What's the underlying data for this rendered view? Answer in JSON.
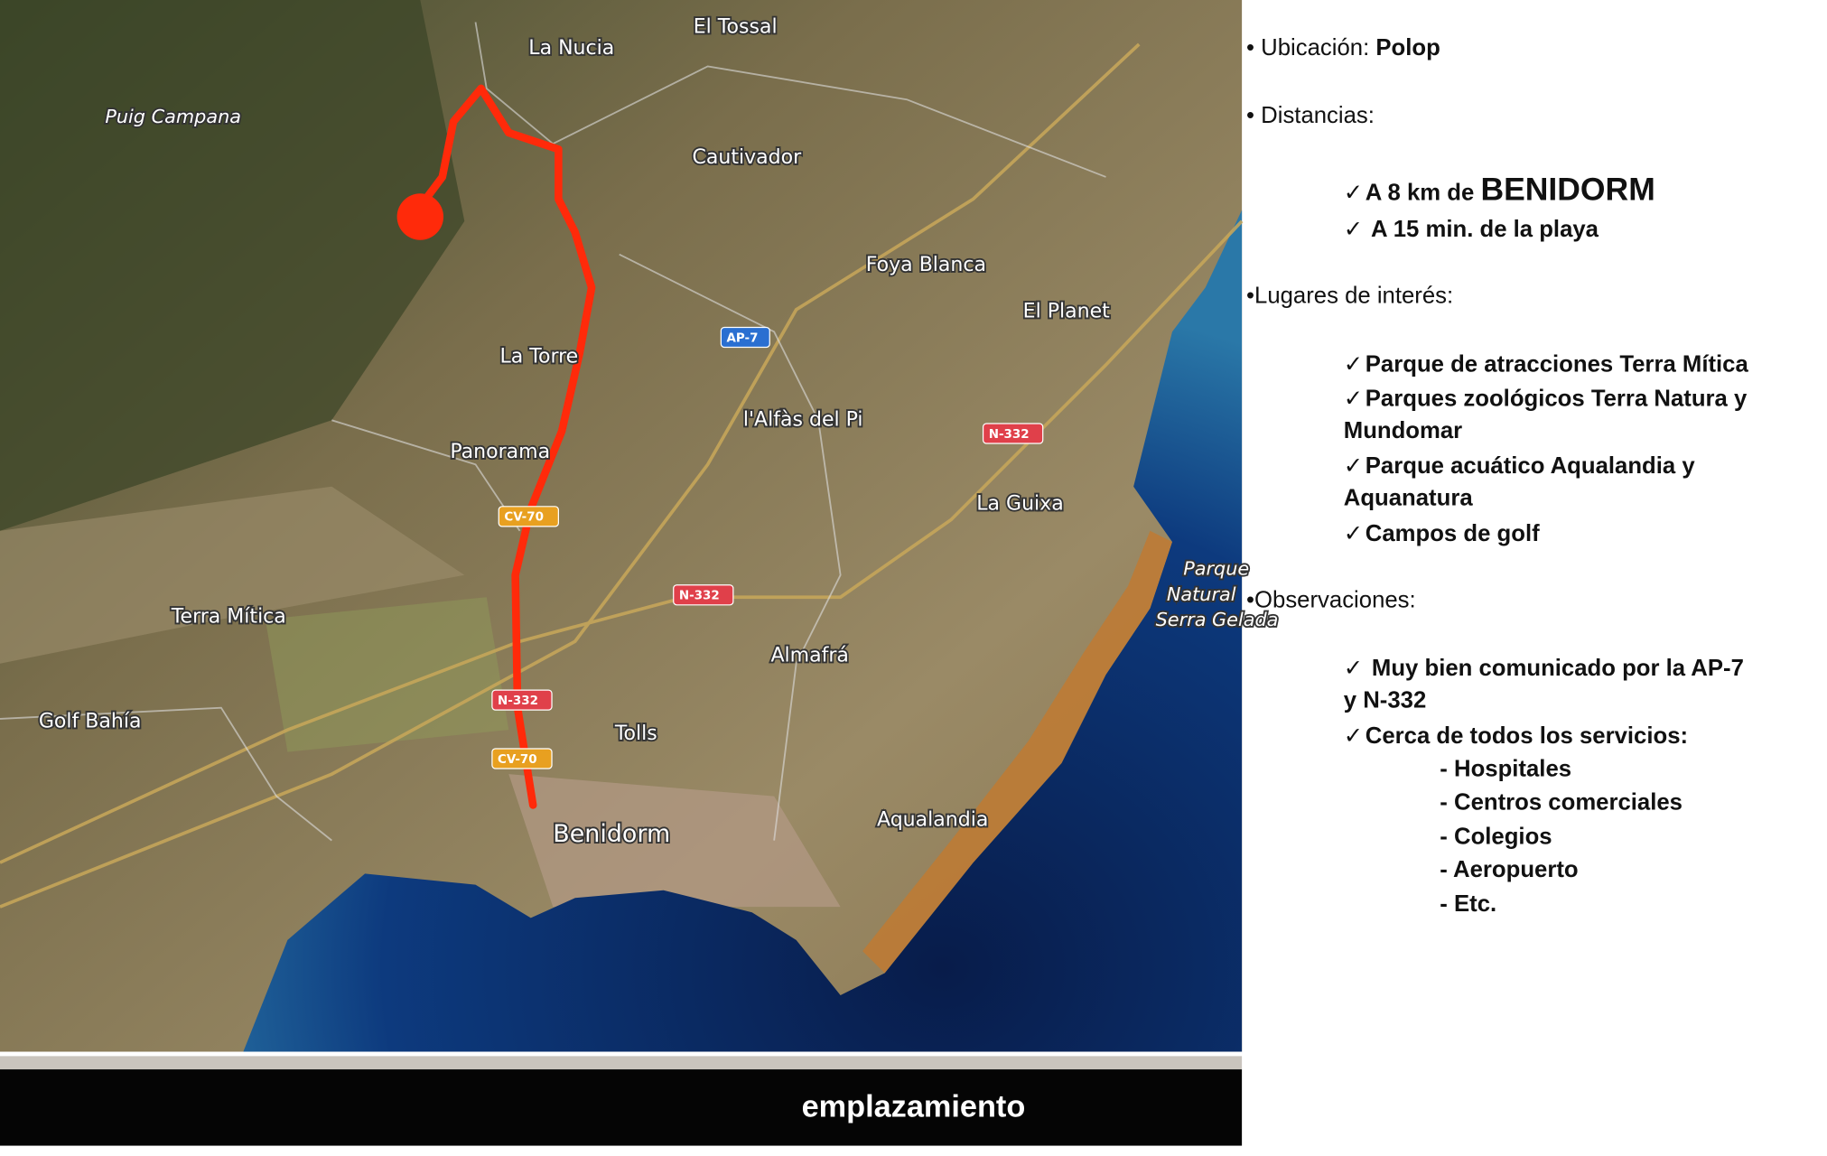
{
  "map": {
    "labels": {
      "el_tossal": "El Tossal",
      "la_nucia": "La Nucia",
      "puig_campana": "Puig Campana",
      "cautivador": "Cautivador",
      "foya_blanca": "Foya Blanca",
      "el_planet": "El Planet",
      "la_torre": "La Torre",
      "alfas": "l'Alfàs del Pi",
      "panorama": "Panorama",
      "la_guixa": "La Guixa",
      "parque1": "Parque",
      "parque2": "Natural",
      "parque3": "Serra Gelada",
      "terra_mitica": "Terra Mítica",
      "almafra": "Almafrá",
      "golf_bahia": "Golf Bahía",
      "tolls": "Tolls",
      "benidorm": "Benidorm",
      "aqualandia": "Aqualandia"
    },
    "shields": {
      "ap7": "AP-7",
      "n332": "N-332",
      "cv70": "CV-70"
    },
    "colors": {
      "route": "#ff2a0a",
      "sea": "#0b2f6e",
      "land": "#8a7a55",
      "ap_shield": "#2a6fd1",
      "n_shield": "#e0404a",
      "cv_shield": "#e8a020"
    }
  },
  "footer": {
    "label": "emplazamiento"
  },
  "info": {
    "ubicacion_label": "• Ubicación: ",
    "ubicacion_value": "Polop",
    "distancias_label": "• Distancias:",
    "distancias": {
      "check": "✓",
      "d1_prefix": "A 8 km de ",
      "d1_emph": "BENIDORM",
      "d2": " A 15 min. de la playa"
    },
    "lugares_label": "•Lugares de interés:",
    "lugares": [
      "Parque de atracciones Terra Mítica",
      "Parques zoológicos Terra Natura y",
      "Mundomar",
      "Parque acuático Aqualandia y",
      "Aquanatura",
      "Campos de golf"
    ],
    "observaciones_label": "•Observaciones:",
    "observaciones": [
      " Muy bien comunicado  por la AP-7",
      "y N-332",
      "Cerca de todos los servicios:"
    ],
    "servicios": [
      "- Hospitales",
      "- Centros comerciales",
      "- Colegios",
      "- Aeropuerto",
      "- Etc."
    ]
  }
}
